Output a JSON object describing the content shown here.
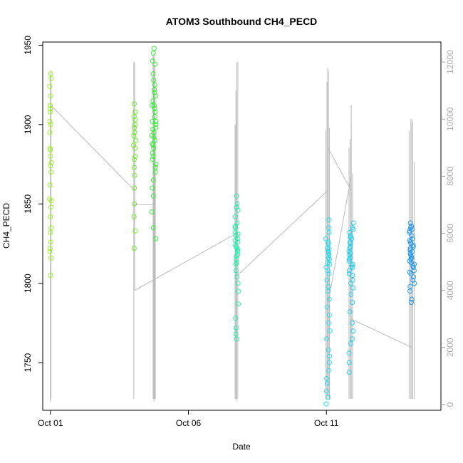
{
  "chart_data": {
    "type": "scatter",
    "title": "ATOM3 Southbound CH4_PECD",
    "xlabel": "Date",
    "ylabel": "CH4_PECD",
    "x_ticks": [
      {
        "day": 1,
        "label": "Oct 01"
      },
      {
        "day": 6,
        "label": "Oct 06"
      },
      {
        "day": 11,
        "label": "Oct 11"
      }
    ],
    "x_range_days": [
      0.72,
      15.15
    ],
    "ylim": [
      1720,
      1952
    ],
    "y_ticks": [
      1750,
      1800,
      1850,
      1900,
      1950
    ],
    "y2_range": [
      -200,
      12700
    ],
    "y2_ticks": [
      0,
      2000,
      4000,
      6000,
      8000,
      10000,
      12000
    ],
    "altitude_color": "#bbbbbb",
    "point_clusters": [
      {
        "day": 1.0,
        "spread_days": 0.03,
        "values": [
          1929,
          1924,
          1918,
          1912,
          1908,
          1900,
          1895,
          1885,
          1880,
          1876,
          1870,
          1862,
          1852,
          1848,
          1842,
          1835,
          1832,
          1826,
          1822,
          1816,
          1805,
          1932,
          1910,
          1902,
          1884,
          1874,
          1853,
          1820
        ],
        "color": "#99ee22"
      },
      {
        "day": 4.05,
        "spread_days": 0.04,
        "values": [
          1913,
          1908,
          1903,
          1900,
          1898,
          1893,
          1890,
          1885,
          1880,
          1878,
          1873,
          1868,
          1860,
          1850,
          1842,
          1833,
          1822,
          1905,
          1895,
          1887
        ],
        "color": "#66ee22"
      },
      {
        "day": 4.75,
        "spread_days": 0.08,
        "values": [
          1948,
          1945,
          1940,
          1938,
          1932,
          1928,
          1925,
          1920,
          1918,
          1915,
          1912,
          1910,
          1908,
          1905,
          1902,
          1900,
          1898,
          1895,
          1892,
          1890,
          1888,
          1885,
          1882,
          1880,
          1878,
          1875,
          1870,
          1865,
          1860,
          1855,
          1845,
          1835,
          1828,
          1922,
          1912,
          1897,
          1887,
          1873,
          1902,
          1893
        ],
        "color": "#33ee33"
      },
      {
        "day": 7.75,
        "spread_days": 0.06,
        "values": [
          1855,
          1850,
          1846,
          1842,
          1838,
          1835,
          1832,
          1830,
          1828,
          1826,
          1824,
          1822,
          1820,
          1818,
          1815,
          1812,
          1808,
          1804,
          1800,
          1795,
          1787,
          1778,
          1772,
          1768,
          1765,
          1836,
          1827,
          1821,
          1817,
          1813,
          1848,
          1831,
          1823
        ],
        "color": "#22eeaa"
      },
      {
        "day": 11.05,
        "spread_days": 0.08,
        "values": [
          1840,
          1835,
          1832,
          1828,
          1825,
          1822,
          1820,
          1818,
          1815,
          1812,
          1810,
          1806,
          1802,
          1798,
          1795,
          1790,
          1785,
          1780,
          1775,
          1770,
          1765,
          1758,
          1754,
          1750,
          1745,
          1740,
          1737,
          1732,
          1728,
          1724,
          1826,
          1816,
          1808,
          1819,
          1813,
          1822
        ],
        "color": "#22ddee"
      },
      {
        "day": 11.9,
        "spread_days": 0.08,
        "values": [
          1838,
          1835,
          1832,
          1830,
          1828,
          1825,
          1822,
          1820,
          1818,
          1816,
          1814,
          1812,
          1810,
          1808,
          1805,
          1802,
          1800,
          1797,
          1793,
          1788,
          1782,
          1775,
          1770,
          1765,
          1762,
          1756,
          1750,
          1744,
          1834,
          1826,
          1819,
          1815,
          1811,
          1806,
          1823,
          1829
        ],
        "color": "#22ccee"
      },
      {
        "day": 14.1,
        "spread_days": 0.09,
        "values": [
          1838,
          1836,
          1834,
          1832,
          1830,
          1828,
          1826,
          1824,
          1822,
          1820,
          1818,
          1816,
          1814,
          1812,
          1810,
          1808,
          1806,
          1804,
          1802,
          1800,
          1798,
          1795,
          1790,
          1788,
          1833,
          1827,
          1823,
          1819,
          1815,
          1811,
          1807,
          1835,
          1821,
          1817,
          1813,
          1825
        ],
        "color": "#2299ee"
      }
    ],
    "altitude_segments": [
      [
        [
          1.0,
          11500
        ],
        [
          1.0,
          100
        ]
      ],
      [
        [
          1.0,
          10500
        ],
        [
          4.05,
          7500
        ],
        [
          4.05,
          12000
        ],
        [
          4.05,
          4000
        ],
        [
          4.05,
          7000
        ],
        [
          4.75,
          7000
        ],
        [
          4.75,
          12300
        ],
        [
          4.75,
          100
        ]
      ],
      [
        [
          4.05,
          4000
        ],
        [
          7.75,
          6000
        ],
        [
          7.75,
          12000
        ],
        [
          7.75,
          100
        ]
      ],
      [
        [
          7.75,
          4500
        ],
        [
          11.05,
          7500
        ],
        [
          11.05,
          11800
        ],
        [
          11.05,
          300
        ]
      ],
      [
        [
          11.05,
          3500
        ],
        [
          11.9,
          8000
        ],
        [
          11.9,
          10500
        ],
        [
          11.9,
          200
        ]
      ],
      [
        [
          11.05,
          9000
        ],
        [
          11.9,
          7500
        ]
      ],
      [
        [
          11.9,
          3000
        ],
        [
          14.1,
          2000
        ],
        [
          14.1,
          10000
        ],
        [
          14.1,
          200
        ]
      ]
    ],
    "altitude_spikes": [
      {
        "day": 1.02,
        "top": 11700
      },
      {
        "day": 4.02,
        "top": 12000
      },
      {
        "day": 4.72,
        "top": 12200
      },
      {
        "day": 4.74,
        "top": 11400
      },
      {
        "day": 4.76,
        "top": 10800
      },
      {
        "day": 4.78,
        "top": 11900
      },
      {
        "day": 4.8,
        "top": 9500
      },
      {
        "day": 7.69,
        "top": 9800
      },
      {
        "day": 7.72,
        "top": 11000
      },
      {
        "day": 7.75,
        "top": 9900
      },
      {
        "day": 7.79,
        "top": 12000
      },
      {
        "day": 10.98,
        "top": 9600
      },
      {
        "day": 11.02,
        "top": 11300
      },
      {
        "day": 11.07,
        "top": 11700
      },
      {
        "day": 11.11,
        "top": 9700
      },
      {
        "day": 11.82,
        "top": 9000
      },
      {
        "day": 11.86,
        "top": 9300
      },
      {
        "day": 11.9,
        "top": 9900
      },
      {
        "day": 11.95,
        "top": 8100
      },
      {
        "day": 14.0,
        "top": 9600
      },
      {
        "day": 14.06,
        "top": 10000
      },
      {
        "day": 14.12,
        "top": 9900
      },
      {
        "day": 14.18,
        "top": 8500
      }
    ]
  }
}
